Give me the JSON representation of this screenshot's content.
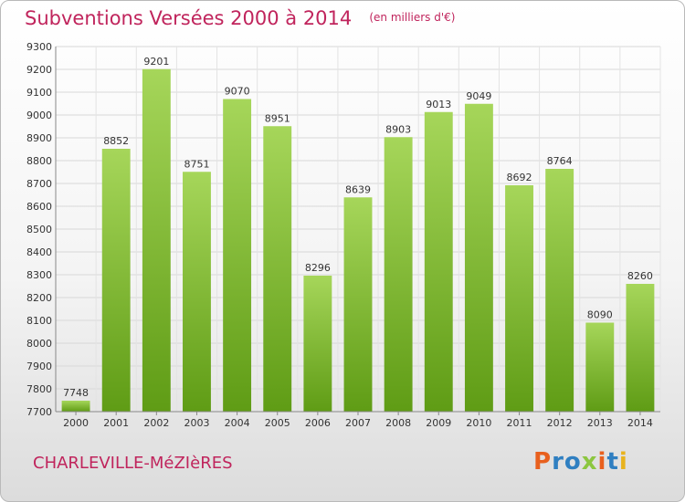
{
  "title": "Subventions Versées 2000 à 2014",
  "unit_note": "(en milliers d'€)",
  "commune": "CHARLEVILLE-MéZIèRES",
  "logo": "Proxiti",
  "colors": {
    "title": "#c0245c",
    "bar_top": "#a6d65a",
    "bar_bottom": "#5f9c15",
    "grid": "#d8d8d8"
  },
  "chart_data": {
    "type": "bar",
    "title": "Subventions Versées 2000 à 2014",
    "xlabel": "",
    "ylabel": "",
    "categories": [
      "2000",
      "2001",
      "2002",
      "2003",
      "2004",
      "2005",
      "2006",
      "2007",
      "2008",
      "2009",
      "2010",
      "2011",
      "2012",
      "2013",
      "2014"
    ],
    "values": [
      7748,
      8852,
      9201,
      8751,
      9070,
      8951,
      8296,
      8639,
      8903,
      9013,
      9049,
      8692,
      8764,
      8090,
      8260
    ],
    "ylim": [
      7700,
      9300
    ],
    "yticks": [
      7700,
      7800,
      7900,
      8000,
      8100,
      8200,
      8300,
      8400,
      8500,
      8600,
      8700,
      8800,
      8900,
      9000,
      9100,
      9200,
      9300
    ],
    "grid": true,
    "legend": "none"
  }
}
